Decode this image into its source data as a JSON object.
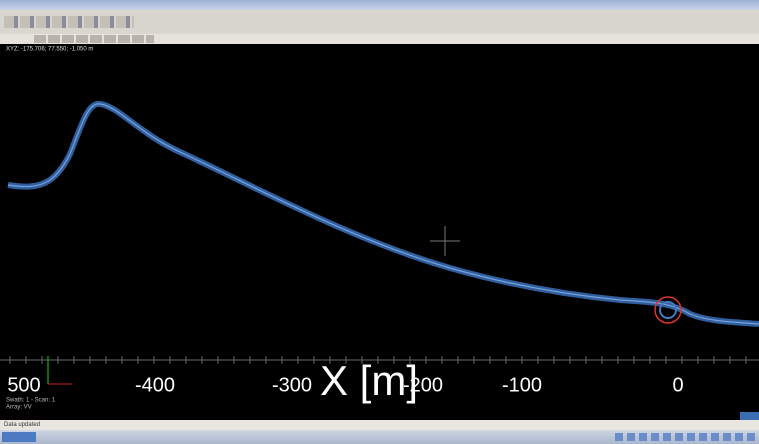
{
  "viewer": {
    "coords": "XYZ: -175.706; 77.550; -1.050 m",
    "axis": {
      "label": "X [m]",
      "ticks": [
        "500",
        "-400",
        "-300",
        "-200",
        "-100",
        "0"
      ]
    },
    "info": [
      "Swath: 1 - Scan: 1",
      "Array: VV"
    ],
    "status": "Data updated"
  }
}
